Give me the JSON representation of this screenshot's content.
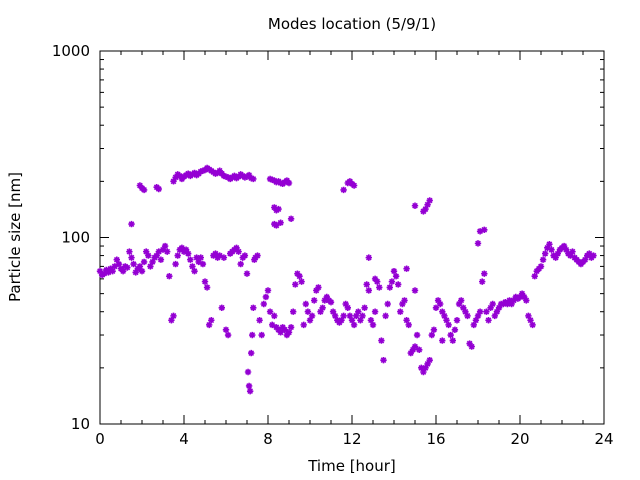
{
  "chart_data": {
    "type": "scatter",
    "title": "Modes location (5/9/1)",
    "xlabel": "Time [hour]",
    "ylabel": "Particle size [nm]",
    "xlim": [
      0,
      24
    ],
    "ylim": [
      10,
      1000
    ],
    "yscale": "log",
    "x_ticks": [
      0,
      4,
      8,
      12,
      16,
      20,
      24
    ],
    "y_ticks": [
      10,
      100,
      1000
    ],
    "x_tick_labels": [
      "0",
      "4",
      "8",
      "12",
      "16",
      "20",
      "24"
    ],
    "y_tick_labels": [
      "10",
      "100",
      "1000"
    ],
    "grid": false,
    "legend": "none",
    "marker_color": "#9400d3",
    "series": [
      {
        "points": [
          [
            0.0,
            66
          ],
          [
            0.1,
            63
          ],
          [
            0.2,
            64
          ],
          [
            0.3,
            67
          ],
          [
            0.4,
            65
          ],
          [
            0.5,
            68
          ],
          [
            0.6,
            66
          ],
          [
            0.7,
            70
          ],
          [
            0.8,
            76
          ],
          [
            0.9,
            72
          ],
          [
            1.0,
            68
          ],
          [
            1.1,
            66
          ],
          [
            1.2,
            70
          ],
          [
            1.3,
            69
          ],
          [
            1.4,
            84
          ],
          [
            1.5,
            78
          ],
          [
            1.6,
            72
          ],
          [
            1.7,
            65
          ],
          [
            1.8,
            68
          ],
          [
            1.9,
            70
          ],
          [
            2.0,
            66
          ],
          [
            2.1,
            74
          ],
          [
            2.2,
            84
          ],
          [
            2.3,
            80
          ],
          [
            2.4,
            70
          ],
          [
            2.5,
            74
          ],
          [
            2.6,
            78
          ],
          [
            2.7,
            80
          ],
          [
            2.8,
            84
          ],
          [
            2.9,
            76
          ],
          [
            3.0,
            86
          ],
          [
            3.1,
            90
          ],
          [
            3.2,
            84
          ],
          [
            3.3,
            62
          ],
          [
            3.4,
            36
          ],
          [
            3.5,
            38
          ],
          [
            3.6,
            72
          ],
          [
            3.7,
            80
          ],
          [
            3.8,
            86
          ],
          [
            3.9,
            88
          ],
          [
            4.0,
            84
          ],
          [
            4.1,
            86
          ],
          [
            4.2,
            82
          ],
          [
            4.3,
            76
          ],
          [
            4.4,
            70
          ],
          [
            4.5,
            66
          ],
          [
            4.6,
            78
          ],
          [
            4.7,
            74
          ],
          [
            4.8,
            78
          ],
          [
            4.9,
            72
          ],
          [
            5.0,
            58
          ],
          [
            5.1,
            54
          ],
          [
            5.2,
            34
          ],
          [
            5.3,
            36
          ],
          [
            5.4,
            80
          ],
          [
            5.5,
            82
          ],
          [
            5.6,
            78
          ],
          [
            5.7,
            80
          ],
          [
            5.8,
            42
          ],
          [
            5.9,
            78
          ],
          [
            6.0,
            32
          ],
          [
            6.1,
            30
          ],
          [
            6.2,
            82
          ],
          [
            6.3,
            84
          ],
          [
            6.4,
            86
          ],
          [
            6.5,
            88
          ],
          [
            6.6,
            84
          ],
          [
            6.7,
            72
          ],
          [
            6.8,
            78
          ],
          [
            6.9,
            80
          ],
          [
            7.0,
            64
          ],
          [
            7.05,
            19
          ],
          [
            7.1,
            16
          ],
          [
            7.15,
            15
          ],
          [
            7.2,
            24
          ],
          [
            7.25,
            30
          ],
          [
            7.3,
            42
          ],
          [
            7.35,
            76
          ],
          [
            7.4,
            78
          ],
          [
            7.5,
            80
          ],
          [
            7.6,
            36
          ],
          [
            7.7,
            30
          ],
          [
            7.8,
            44
          ],
          [
            7.9,
            48
          ],
          [
            8.0,
            52
          ],
          [
            8.1,
            40
          ],
          [
            8.2,
            34
          ],
          [
            8.3,
            38
          ],
          [
            8.4,
            33
          ],
          [
            8.5,
            32
          ],
          [
            8.6,
            31
          ],
          [
            8.7,
            33
          ],
          [
            8.8,
            32
          ],
          [
            8.9,
            30
          ],
          [
            9.0,
            31
          ],
          [
            9.1,
            33
          ],
          [
            9.2,
            40
          ],
          [
            9.3,
            56
          ],
          [
            9.4,
            64
          ],
          [
            9.5,
            62
          ],
          [
            9.6,
            58
          ],
          [
            9.7,
            34
          ],
          [
            9.8,
            44
          ],
          [
            9.9,
            40
          ],
          [
            10.0,
            36
          ],
          [
            10.1,
            38
          ],
          [
            10.2,
            46
          ],
          [
            10.3,
            52
          ],
          [
            10.4,
            54
          ],
          [
            10.5,
            40
          ],
          [
            10.6,
            42
          ],
          [
            10.7,
            46
          ],
          [
            10.8,
            48
          ],
          [
            10.9,
            46
          ],
          [
            11.0,
            45
          ],
          [
            11.1,
            40
          ],
          [
            11.2,
            38
          ],
          [
            11.3,
            36
          ],
          [
            11.4,
            35
          ],
          [
            11.5,
            36
          ],
          [
            11.6,
            38
          ],
          [
            11.7,
            44
          ],
          [
            11.8,
            42
          ],
          [
            11.9,
            38
          ],
          [
            12.0,
            36
          ],
          [
            12.1,
            34
          ],
          [
            12.2,
            38
          ],
          [
            12.3,
            40
          ],
          [
            12.4,
            36
          ],
          [
            12.5,
            38
          ],
          [
            12.6,
            42
          ],
          [
            12.7,
            56
          ],
          [
            12.8,
            52
          ],
          [
            12.9,
            36
          ],
          [
            13.0,
            34
          ],
          [
            13.1,
            60
          ],
          [
            13.2,
            58
          ],
          [
            13.3,
            54
          ],
          [
            13.4,
            28
          ],
          [
            13.5,
            22
          ],
          [
            13.6,
            38
          ],
          [
            13.7,
            44
          ],
          [
            13.8,
            54
          ],
          [
            13.9,
            58
          ],
          [
            14.0,
            66
          ],
          [
            14.1,
            62
          ],
          [
            14.2,
            56
          ],
          [
            14.3,
            40
          ],
          [
            14.4,
            44
          ],
          [
            14.5,
            46
          ],
          [
            14.6,
            36
          ],
          [
            14.7,
            34
          ],
          [
            14.8,
            24
          ],
          [
            14.9,
            25
          ],
          [
            15.0,
            26
          ],
          [
            15.1,
            30
          ],
          [
            15.2,
            25
          ],
          [
            15.3,
            20
          ],
          [
            15.4,
            19
          ],
          [
            15.5,
            20
          ],
          [
            15.6,
            21
          ],
          [
            15.7,
            22
          ],
          [
            15.8,
            30
          ],
          [
            15.9,
            32
          ],
          [
            16.0,
            42
          ],
          [
            16.1,
            46
          ],
          [
            16.2,
            44
          ],
          [
            16.3,
            40
          ],
          [
            16.4,
            38
          ],
          [
            16.5,
            36
          ],
          [
            16.6,
            34
          ],
          [
            16.7,
            30
          ],
          [
            16.8,
            28
          ],
          [
            16.9,
            32
          ],
          [
            17.0,
            36
          ],
          [
            17.1,
            44
          ],
          [
            17.2,
            46
          ],
          [
            17.3,
            42
          ],
          [
            17.4,
            40
          ],
          [
            17.5,
            38
          ],
          [
            17.6,
            27
          ],
          [
            17.7,
            26
          ],
          [
            17.8,
            34
          ],
          [
            17.9,
            36
          ],
          [
            18.0,
            38
          ],
          [
            18.1,
            40
          ],
          [
            18.2,
            58
          ],
          [
            18.3,
            64
          ],
          [
            18.4,
            40
          ],
          [
            18.5,
            36
          ],
          [
            18.6,
            42
          ],
          [
            18.7,
            44
          ],
          [
            18.8,
            38
          ],
          [
            18.9,
            40
          ],
          [
            19.0,
            42
          ],
          [
            19.1,
            44
          ],
          [
            19.2,
            44
          ],
          [
            19.3,
            45
          ],
          [
            19.4,
            44
          ],
          [
            19.5,
            46
          ],
          [
            19.6,
            44
          ],
          [
            19.7,
            46
          ],
          [
            19.8,
            48
          ],
          [
            19.9,
            47
          ],
          [
            20.0,
            48
          ],
          [
            20.1,
            50
          ],
          [
            20.2,
            48
          ],
          [
            20.3,
            46
          ],
          [
            20.4,
            38
          ],
          [
            20.5,
            36
          ],
          [
            20.6,
            34
          ],
          [
            20.7,
            62
          ],
          [
            20.8,
            66
          ],
          [
            20.9,
            68
          ],
          [
            21.0,
            70
          ],
          [
            21.1,
            76
          ],
          [
            21.2,
            82
          ],
          [
            21.3,
            88
          ],
          [
            21.4,
            92
          ],
          [
            21.5,
            86
          ],
          [
            21.6,
            80
          ],
          [
            21.7,
            78
          ],
          [
            21.8,
            82
          ],
          [
            21.9,
            86
          ],
          [
            22.0,
            88
          ],
          [
            22.1,
            90
          ],
          [
            22.2,
            86
          ],
          [
            22.3,
            82
          ],
          [
            22.4,
            80
          ],
          [
            22.5,
            84
          ],
          [
            22.6,
            78
          ],
          [
            22.7,
            76
          ],
          [
            22.8,
            74
          ],
          [
            22.9,
            72
          ],
          [
            23.0,
            74
          ],
          [
            23.1,
            76
          ],
          [
            23.2,
            80
          ],
          [
            23.3,
            82
          ],
          [
            23.4,
            78
          ],
          [
            23.5,
            80
          ],
          [
            3.5,
            200
          ],
          [
            3.6,
            210
          ],
          [
            3.7,
            218
          ],
          [
            3.8,
            214
          ],
          [
            3.9,
            206
          ],
          [
            4.0,
            212
          ],
          [
            4.1,
            216
          ],
          [
            4.2,
            220
          ],
          [
            4.3,
            214
          ],
          [
            4.4,
            218
          ],
          [
            4.5,
            222
          ],
          [
            4.6,
            216
          ],
          [
            4.7,
            220
          ],
          [
            4.8,
            226
          ],
          [
            4.9,
            228
          ],
          [
            5.0,
            230
          ],
          [
            5.1,
            236
          ],
          [
            5.2,
            232
          ],
          [
            5.3,
            228
          ],
          [
            5.4,
            224
          ],
          [
            5.5,
            220
          ],
          [
            5.6,
            222
          ],
          [
            5.7,
            228
          ],
          [
            5.8,
            220
          ],
          [
            5.9,
            214
          ],
          [
            6.0,
            212
          ],
          [
            6.1,
            210
          ],
          [
            6.2,
            206
          ],
          [
            6.3,
            210
          ],
          [
            6.4,
            214
          ],
          [
            6.5,
            208
          ],
          [
            6.6,
            212
          ],
          [
            6.7,
            218
          ],
          [
            6.8,
            214
          ],
          [
            6.9,
            210
          ],
          [
            7.0,
            212
          ],
          [
            7.1,
            216
          ],
          [
            7.2,
            208
          ],
          [
            7.3,
            206
          ],
          [
            8.1,
            206
          ],
          [
            8.2,
            204
          ],
          [
            8.3,
            202
          ],
          [
            8.4,
            198
          ],
          [
            8.5,
            200
          ],
          [
            8.6,
            196
          ],
          [
            8.7,
            194
          ],
          [
            8.8,
            198
          ],
          [
            8.9,
            202
          ],
          [
            9.0,
            196
          ],
          [
            8.3,
            145
          ],
          [
            8.4,
            140
          ],
          [
            8.5,
            142
          ],
          [
            9.1,
            126
          ],
          [
            8.3,
            118
          ],
          [
            8.4,
            116
          ],
          [
            8.6,
            120
          ],
          [
            1.5,
            118
          ],
          [
            1.9,
            190
          ],
          [
            2.0,
            184
          ],
          [
            2.1,
            180
          ],
          [
            2.7,
            186
          ],
          [
            2.8,
            182
          ],
          [
            11.6,
            180
          ],
          [
            11.8,
            196
          ],
          [
            11.9,
            200
          ],
          [
            12.0,
            194
          ],
          [
            12.1,
            190
          ],
          [
            15.0,
            148
          ],
          [
            15.4,
            138
          ],
          [
            15.5,
            142
          ],
          [
            15.6,
            150
          ],
          [
            15.7,
            158
          ],
          [
            16.3,
            28
          ],
          [
            18.0,
            93
          ],
          [
            18.1,
            108
          ],
          [
            18.3,
            110
          ],
          [
            12.8,
            78
          ],
          [
            13.1,
            40
          ],
          [
            14.6,
            68
          ],
          [
            15.0,
            52
          ]
        ]
      }
    ]
  }
}
